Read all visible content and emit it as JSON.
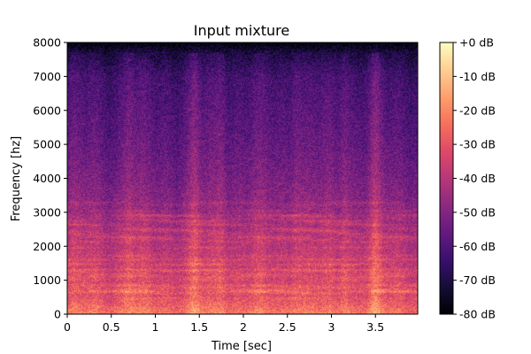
{
  "chart_data": {
    "type": "heatmap",
    "title": "Input mixture",
    "xlabel": "Time [sec]",
    "ylabel": "Frequency [hz]",
    "xlim": [
      0,
      3.98
    ],
    "ylim": [
      0,
      8000
    ],
    "x_ticks": [
      0,
      0.5,
      1,
      1.5,
      2,
      2.5,
      3,
      3.5
    ],
    "x_tick_labels": [
      "0",
      "0.5",
      "1",
      "1.5",
      "2",
      "2.5",
      "3",
      "3.5"
    ],
    "y_ticks": [
      0,
      1000,
      2000,
      3000,
      4000,
      5000,
      6000,
      7000,
      8000
    ],
    "y_tick_labels": [
      "0",
      "1000",
      "2000",
      "3000",
      "4000",
      "5000",
      "6000",
      "7000",
      "8000"
    ],
    "colorbar": {
      "range_db": [
        -80,
        0
      ],
      "ticks": [
        0,
        -10,
        -20,
        -30,
        -40,
        -50,
        -60,
        -70,
        -80
      ],
      "tick_labels": [
        "+0 dB",
        "-10 dB",
        "-20 dB",
        "-30 dB",
        "-40 dB",
        "-50 dB",
        "-60 dB",
        "-70 dB",
        "-80 dB"
      ],
      "colormap": "magma"
    },
    "approx_level_db_by_frequency": {
      "frequency_hz": [
        0,
        500,
        1000,
        2000,
        3000,
        4000,
        5000,
        6000,
        7000,
        7700,
        8000
      ],
      "level_db": [
        -22,
        -32,
        -35,
        -40,
        -47,
        -52,
        -56,
        -59,
        -62,
        -70,
        -80
      ]
    },
    "louder_time_segments_sec": [
      0.7,
      1.45,
      1.75,
      2.6,
      3.15,
      3.5
    ]
  }
}
